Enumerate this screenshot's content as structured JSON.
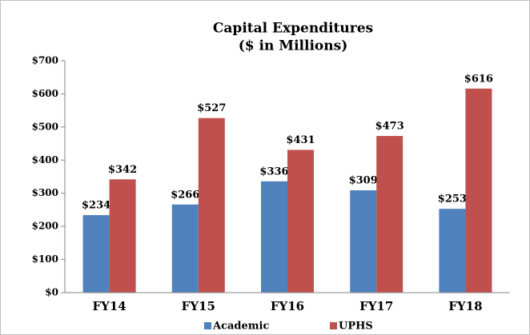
{
  "chart_data": {
    "type": "bar",
    "title": "Capital Expenditures",
    "subtitle": "($ in Millions)",
    "categories": [
      "FY14",
      "FY15",
      "FY16",
      "FY17",
      "FY18"
    ],
    "series": [
      {
        "name": "Academic",
        "color": "#4f81bd",
        "values": [
          234,
          266,
          336,
          309,
          253
        ],
        "value_labels": [
          "$234",
          "$266",
          "$336",
          "$309",
          "$253"
        ]
      },
      {
        "name": "UPHS",
        "color": "#c0504d",
        "values": [
          342,
          527,
          431,
          473,
          616
        ],
        "value_labels": [
          "$342",
          "$527",
          "$431",
          "$473",
          "$616"
        ]
      }
    ],
    "ylim": [
      0,
      700
    ],
    "yticks": [
      {
        "value": 0,
        "label": "$0"
      },
      {
        "value": 100,
        "label": "$100"
      },
      {
        "value": 200,
        "label": "$200"
      },
      {
        "value": 300,
        "label": "$300"
      },
      {
        "value": 400,
        "label": "$400"
      },
      {
        "value": 500,
        "label": "$500"
      },
      {
        "value": 600,
        "label": "$600"
      },
      {
        "value": 700,
        "label": "$700"
      }
    ],
    "grid": false,
    "legend": "bottom"
  }
}
